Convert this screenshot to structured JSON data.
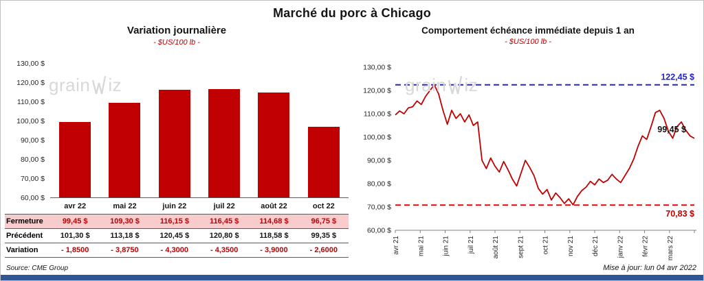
{
  "page": {
    "title": "Marché du porc à Chicago",
    "source": "Source: CME Group",
    "updated": "Mise à jour: lun 04 avr 2022"
  },
  "watermark": {
    "pre": "grain",
    "post": "iz"
  },
  "colors": {
    "series_red": "#C00000",
    "ref_red": "#F00000",
    "ref_blue": "#2323CC",
    "pink_row": "#F8CBCD",
    "footer_bar": "#2F5597",
    "watermark": "#D8D8D8"
  },
  "y_ticks": [
    "130,00 $",
    "120,00 $",
    "110,00 $",
    "100,00 $",
    "90,00 $",
    "80,00 $",
    "70,00 $",
    "60,00 $"
  ],
  "y_tick_values": [
    130,
    120,
    110,
    100,
    90,
    80,
    70,
    60
  ],
  "bar_table": {
    "rows": [
      {
        "label": "Fermeture",
        "style": "fermeture",
        "values": [
          "99,45  $",
          "109,30  $",
          "116,15  $",
          "116,45  $",
          "114,68  $",
          "96,75  $"
        ]
      },
      {
        "label": "Précédent",
        "style": "precedent",
        "values": [
          "101,30  $",
          "113,18  $",
          "120,45  $",
          "120,80  $",
          "118,58  $",
          "99,35  $"
        ]
      },
      {
        "label": "Variation",
        "style": "variation",
        "values": [
          "- 1,8500",
          "- 3,8750",
          "- 4,3000",
          "- 4,3500",
          "- 3,9000",
          "- 2,6000"
        ]
      }
    ]
  },
  "line_labels": {
    "max": "122,45 $",
    "min": "70,83 $",
    "last": "99,45 $"
  },
  "chart_data": [
    {
      "type": "bar",
      "title": "Variation journalière",
      "subtitle": "- $US/100 lb -",
      "categories": [
        "avr 22",
        "mai 22",
        "juin 22",
        "juil 22",
        "août 22",
        "oct 22"
      ],
      "values": [
        99.45,
        109.3,
        116.15,
        116.45,
        114.68,
        96.75
      ],
      "ylim": [
        60,
        130
      ],
      "bar_color": "#C00000",
      "grid": false
    },
    {
      "type": "line",
      "title": "Comportement échéance immédiate depuis 1 an",
      "subtitle": "- $US/100 lb -",
      "x_labels": [
        "avr 21",
        "mai 21",
        "juin 21",
        "juil 21",
        "août 21",
        "sept 21",
        "oct 21",
        "nov 21",
        "déc 21",
        "janv 22",
        "févr 22",
        "mars 22"
      ],
      "values": [
        109.5,
        111.2,
        110.0,
        112.5,
        113.0,
        115.5,
        114.0,
        117.5,
        120.0,
        122.4,
        118.5,
        111.5,
        105.5,
        111.5,
        108.0,
        110.0,
        106.5,
        109.5,
        105.0,
        106.5,
        90.0,
        86.5,
        91.0,
        87.5,
        85.0,
        89.5,
        86.0,
        82.0,
        79.0,
        84.5,
        90.0,
        87.0,
        83.5,
        78.0,
        75.5,
        77.5,
        73.0,
        76.0,
        74.0,
        71.5,
        73.5,
        70.9,
        74.5,
        77.0,
        78.5,
        81.0,
        79.5,
        82.0,
        80.5,
        81.5,
        84.0,
        82.0,
        80.5,
        83.5,
        86.5,
        90.5,
        96.0,
        100.5,
        99.0,
        104.5,
        110.5,
        111.5,
        108.0,
        102.5,
        99.5,
        104.5,
        106.5,
        103.0,
        100.5,
        99.45
      ],
      "ylim": [
        60,
        130
      ],
      "ref_max": 122.45,
      "ref_min": 70.83,
      "last_value": 99.45,
      "grid": false
    }
  ]
}
